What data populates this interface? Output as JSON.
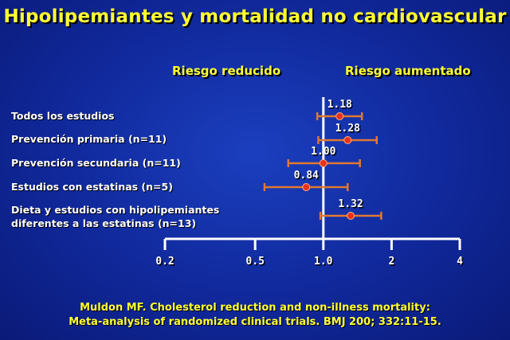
{
  "title": "Hipolipemiantes y mortalidad no cardiovascular",
  "header_left": "Riesgo reducido",
  "header_right": "Riesgo aumentado",
  "chart_data": {
    "type": "forest",
    "xscale": "log",
    "xlim": [
      0.2,
      4
    ],
    "reference_value": 1.0,
    "x_ticks": [
      0.2,
      0.5,
      1.0,
      2,
      4
    ],
    "x_tick_labels": [
      "0.2",
      "0.5",
      "1.0",
      "2",
      "4"
    ],
    "rows": [
      {
        "label": "Todos los estudios",
        "estimate": 1.18,
        "estimate_label": "1.18",
        "ci_low": 0.94,
        "ci_high": 1.48
      },
      {
        "label": "Prevención primaria (n=11)",
        "estimate": 1.28,
        "estimate_label": "1.28",
        "ci_low": 0.95,
        "ci_high": 1.72
      },
      {
        "label": "Prevención secundaria (n=11)",
        "estimate": 1.0,
        "estimate_label": "1.00",
        "ci_low": 0.7,
        "ci_high": 1.45
      },
      {
        "label": "Estudios con estatinas (n=5)",
        "estimate": 0.84,
        "estimate_label": "0.84",
        "ci_low": 0.55,
        "ci_high": 1.28
      },
      {
        "label_lines": [
          "Dieta y estudios con hipolipemiantes",
          "diferentes a las estatinas (n=13)"
        ],
        "estimate": 1.32,
        "estimate_label": "1.32",
        "ci_low": 0.97,
        "ci_high": 1.8
      }
    ],
    "colors": {
      "ci_line": "#e07830",
      "point": "#e8321e",
      "axis": "#ffffff",
      "value_label": "#ffffff"
    }
  },
  "citation_line1": "Muldon MF. Cholesterol reduction and non-illness mortality:",
  "citation_line2": "Meta-analysis of randomized clinical trials. BMJ 200; 332:11-15."
}
